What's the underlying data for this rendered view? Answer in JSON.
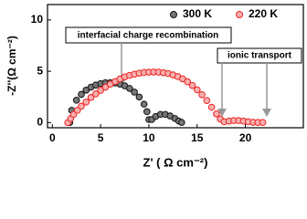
{
  "chart_data": {
    "type": "scatter",
    "x_label": "Z' ( Ω cm⁻²)",
    "y_label": "-Z''(Ω cm⁻²)",
    "xlim": [
      -0.5,
      26
    ],
    "ylim": [
      -0.5,
      11.5
    ],
    "xticks": [
      0,
      5,
      10,
      15,
      20
    ],
    "yticks": [
      0,
      5,
      10
    ],
    "legend": "top-right",
    "annotations": [
      "interfacial charge recombination",
      "ionic transport"
    ],
    "series": [
      {
        "name": "300 K",
        "color": "#111111",
        "x": [
          1.8,
          2.0,
          2.5,
          3.0,
          3.5,
          4.0,
          4.5,
          5.0,
          5.5,
          6.0,
          6.5,
          7.0,
          7.5,
          8.0,
          8.5,
          9.0,
          9.5,
          9.8,
          10.0,
          10.3,
          10.7,
          11.2,
          11.7,
          12.2,
          12.7,
          13.1,
          13.4
        ],
        "values": [
          0,
          1.2,
          2.18,
          2.75,
          3.16,
          3.45,
          3.66,
          3.8,
          3.88,
          3.89,
          3.86,
          3.75,
          3.58,
          3.33,
          2.97,
          2.49,
          1.8,
          1.07,
          0.3,
          0.3,
          0.6,
          0.8,
          0.8,
          0.65,
          0.4,
          0.15,
          0.02
        ]
      },
      {
        "name": "220 K",
        "color": "#ee2222",
        "x": [
          1.6,
          1.9,
          2.2,
          2.6,
          3.0,
          3.5,
          4.0,
          4.5,
          5.0,
          5.5,
          6.0,
          6.5,
          7.0,
          7.5,
          8.0,
          8.5,
          9.0,
          9.5,
          10.0,
          10.5,
          11.0,
          11.5,
          12.0,
          12.5,
          13.0,
          13.5,
          14.0,
          14.5,
          15.0,
          15.5,
          16.0,
          16.5,
          17.0,
          17.4,
          17.8,
          18.3,
          18.8,
          19.3,
          19.8,
          20.3,
          20.8,
          21.3,
          21.8
        ],
        "values": [
          0,
          0.4,
          0.8,
          1.2,
          1.6,
          2.0,
          2.45,
          2.8,
          3.15,
          3.45,
          3.75,
          4.0,
          4.25,
          4.45,
          4.6,
          4.72,
          4.82,
          4.88,
          4.92,
          4.93,
          4.92,
          4.86,
          4.78,
          4.65,
          4.48,
          4.26,
          3.98,
          3.62,
          3.2,
          2.72,
          2.15,
          1.5,
          0.85,
          0.35,
          0.08,
          0.15,
          0.2,
          0.2,
          0.15,
          0.08,
          0.03,
          0.02,
          0.02
        ]
      }
    ]
  }
}
